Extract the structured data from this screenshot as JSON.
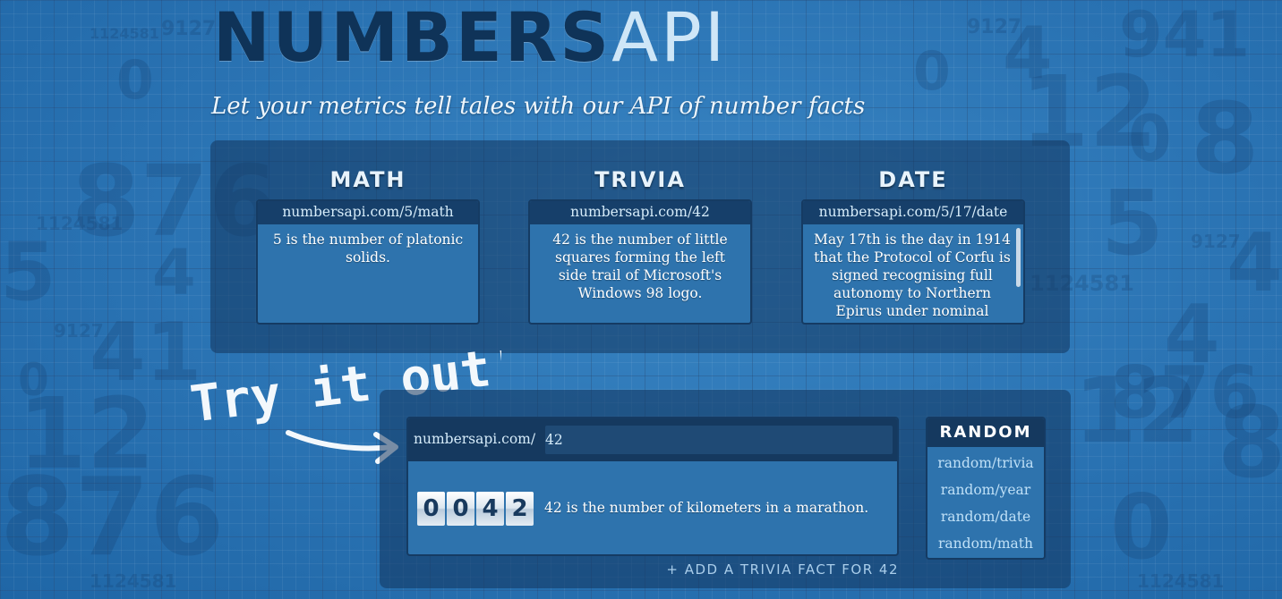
{
  "header": {
    "logo_bold": "NUMBERS",
    "logo_light": "API",
    "tagline": "Let your metrics tell tales with our API of number facts"
  },
  "examples": [
    {
      "title": "MATH",
      "url": "numbersapi.com/5/math",
      "fact": "5 is the number of platonic solids."
    },
    {
      "title": "TRIVIA",
      "url": "numbersapi.com/42",
      "fact": "42 is the number of little squares forming the left side trail of Microsoft's Windows 98 logo."
    },
    {
      "title": "DATE",
      "url": "numbersapi.com/5/17/date",
      "fact": "May 17th is the day in 1914 that the Protocol of Corfu is signed recognising full autonomy to Northern Epirus under nominal"
    }
  ],
  "try_it": {
    "handwritten": "Try it out!",
    "url_prefix": "numbersapi.com/",
    "input_value": "42",
    "counter_digits": [
      "0",
      "0",
      "4",
      "2"
    ],
    "fact": "42 is the number of kilometers in a marathon.",
    "add_fact_link": "+ ADD A TRIVIA FACT FOR 42"
  },
  "random": {
    "title": "RANDOM",
    "links": [
      "random/trivia",
      "random/year",
      "random/date",
      "random/math"
    ]
  },
  "background_digits": [
    "1124581",
    "9127",
    "1124581",
    "9127",
    "1124581",
    "9127",
    "876",
    "41",
    "12",
    "0",
    "5",
    "4",
    "0",
    "876",
    "12",
    "4",
    "0",
    "8",
    "5",
    "0",
    "4",
    "1124581",
    "9127",
    "1124581",
    "941",
    "12",
    "0",
    "8",
    "4",
    "876"
  ],
  "colors": {
    "background": "#2a73b3",
    "panel": "#12345c",
    "card": "#2e73ad",
    "card_header": "#15395f",
    "logo_dark": "#0f3358",
    "link": "#bfe0f7"
  }
}
